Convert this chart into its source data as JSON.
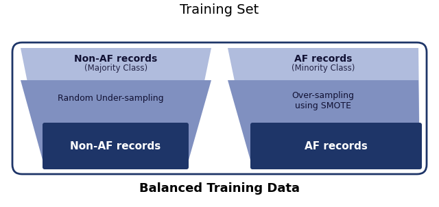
{
  "title_top": "Training Set",
  "title_bottom": "Balanced Training Data",
  "left_top_label": "Non-AF records",
  "left_top_sublabel": "(Majority Class)",
  "left_mid_label": "Random Under-sampling",
  "left_bot_label": "Non-AF records",
  "right_top_label": "AF records",
  "right_top_sublabel": "(Minority Class)",
  "right_mid_label": "Over-sampling\nusing SMOTE",
  "right_bot_label": "AF records",
  "color_light_blue": "#b0bcdd",
  "color_medium_blue": "#8090c0",
  "color_dark_blue": "#1e3568",
  "color_border": "#1e3568",
  "bg_color": "#ffffff"
}
